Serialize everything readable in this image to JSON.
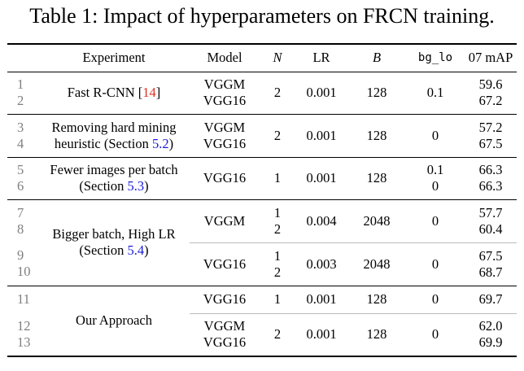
{
  "caption": "Table 1: Impact of hyperparameters on FRCN training.",
  "headers": {
    "experiment": "Experiment",
    "model": "Model",
    "n": "N",
    "lr": "LR",
    "b": "B",
    "bg_lo": "bg_lo",
    "map": "07 mAP"
  },
  "rows": {
    "fast": {
      "idx1": "1",
      "idx2": "2",
      "exp_text": "Fast R-CNN [",
      "exp_cite": "14",
      "exp_close": "]",
      "model1": "VGGM",
      "model2": "VGG16",
      "n": "2",
      "lr": "0.001",
      "b": "128",
      "bg_lo": "0.1",
      "map1": "59.6",
      "map2": "67.2"
    },
    "hard": {
      "idx1": "3",
      "idx2": "4",
      "exp_line1": "Removing hard mining",
      "exp_line2": "heuristic (Section ",
      "exp_sec": "5.2",
      "exp_close": ")",
      "model1": "VGGM",
      "model2": "VGG16",
      "n": "2",
      "lr": "0.001",
      "b": "128",
      "bg_lo": "0",
      "map1": "57.2",
      "map2": "67.5"
    },
    "fewer": {
      "idx1": "5",
      "idx2": "6",
      "exp_line1": "Fewer images per batch",
      "exp_line2": "(Section ",
      "exp_sec": "5.3",
      "exp_close": ")",
      "model": "VGG16",
      "n": "1",
      "lr": "0.001",
      "b": "128",
      "bg_lo1": "0.1",
      "bg_lo2": "0",
      "map1": "66.3",
      "map2": "66.3"
    },
    "bigger": {
      "exp_line1": "Bigger batch, High LR",
      "exp_line2": "(Section ",
      "exp_sec": "5.4",
      "exp_close": ")",
      "a": {
        "idx1": "7",
        "idx2": "8",
        "model": "VGGM",
        "n1": "1",
        "n2": "2",
        "lr": "0.004",
        "b": "2048",
        "bg_lo": "0",
        "map1": "57.7",
        "map2": "60.4"
      },
      "b": {
        "idx1": "9",
        "idx2": "10",
        "model": "VGG16",
        "n1": "1",
        "n2": "2",
        "lr": "0.003",
        "b": "2048",
        "bg_lo": "0",
        "map1": "67.5",
        "map2": "68.7"
      }
    },
    "ours": {
      "exp": "Our Approach",
      "a": {
        "idx": "11",
        "model": "VGG16",
        "n": "1",
        "lr": "0.001",
        "b": "128",
        "bg_lo": "0",
        "map": "69.7"
      },
      "b": {
        "idx1": "12",
        "idx2": "13",
        "model1": "VGGM",
        "model2": "VGG16",
        "n": "2",
        "lr": "0.001",
        "b": "128",
        "bg_lo": "0",
        "map1": "62.0",
        "map2": "69.9"
      }
    }
  }
}
